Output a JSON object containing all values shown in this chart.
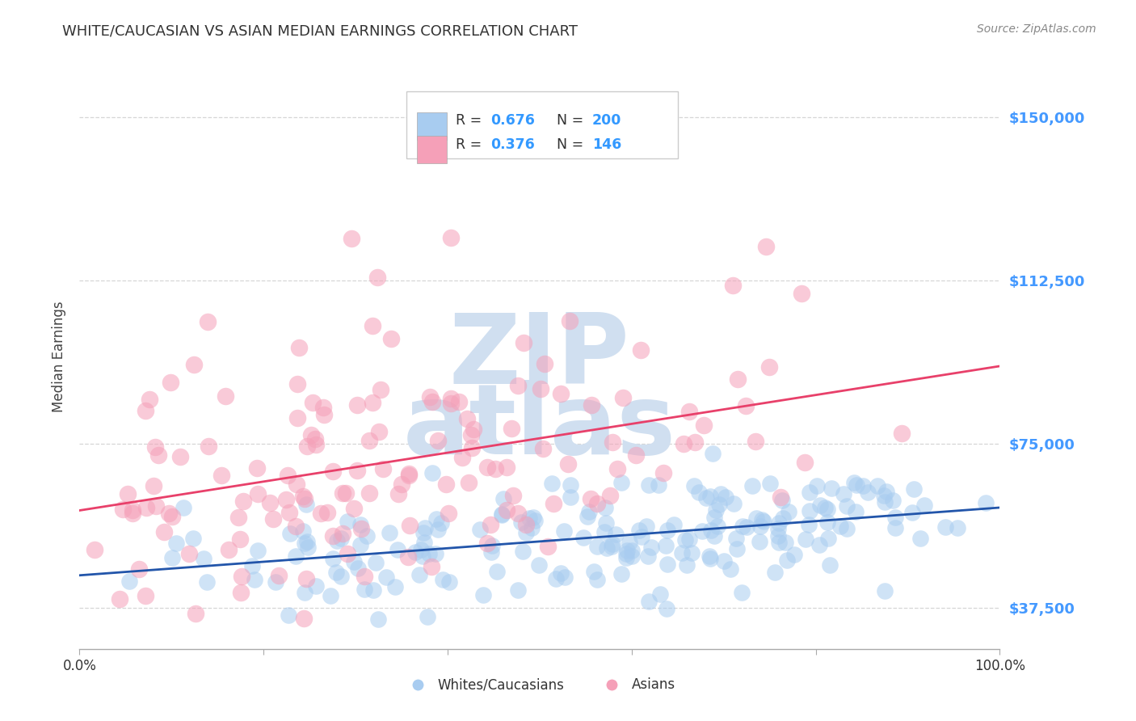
{
  "title": "WHITE/CAUCASIAN VS ASIAN MEDIAN EARNINGS CORRELATION CHART",
  "source": "Source: ZipAtlas.com",
  "ylabel": "Median Earnings",
  "yticks": [
    37500,
    75000,
    112500,
    150000
  ],
  "ytick_labels": [
    "$37,500",
    "$75,000",
    "$112,500",
    "$150,000"
  ],
  "legend_labels": [
    "Whites/Caucasians",
    "Asians"
  ],
  "legend_r_white": "0.676",
  "legend_n_white": "200",
  "legend_r_asian": "0.376",
  "legend_n_asian": "146",
  "white_color": "#a8ccf0",
  "asian_color": "#f5a0b8",
  "white_line_color": "#2255aa",
  "asian_line_color": "#e8406a",
  "watermark_color": "#d0dff0",
  "background_color": "#ffffff",
  "grid_color": "#cccccc",
  "title_color": "#333333",
  "axis_label_color": "#444444",
  "ytick_color": "#4499ff",
  "source_color": "#888888",
  "blue_text_color": "#3399ff",
  "n_white": 200,
  "n_asian": 146,
  "seed": 12,
  "xlim": [
    0.0,
    1.0
  ],
  "ylim": [
    28000,
    162000
  ]
}
